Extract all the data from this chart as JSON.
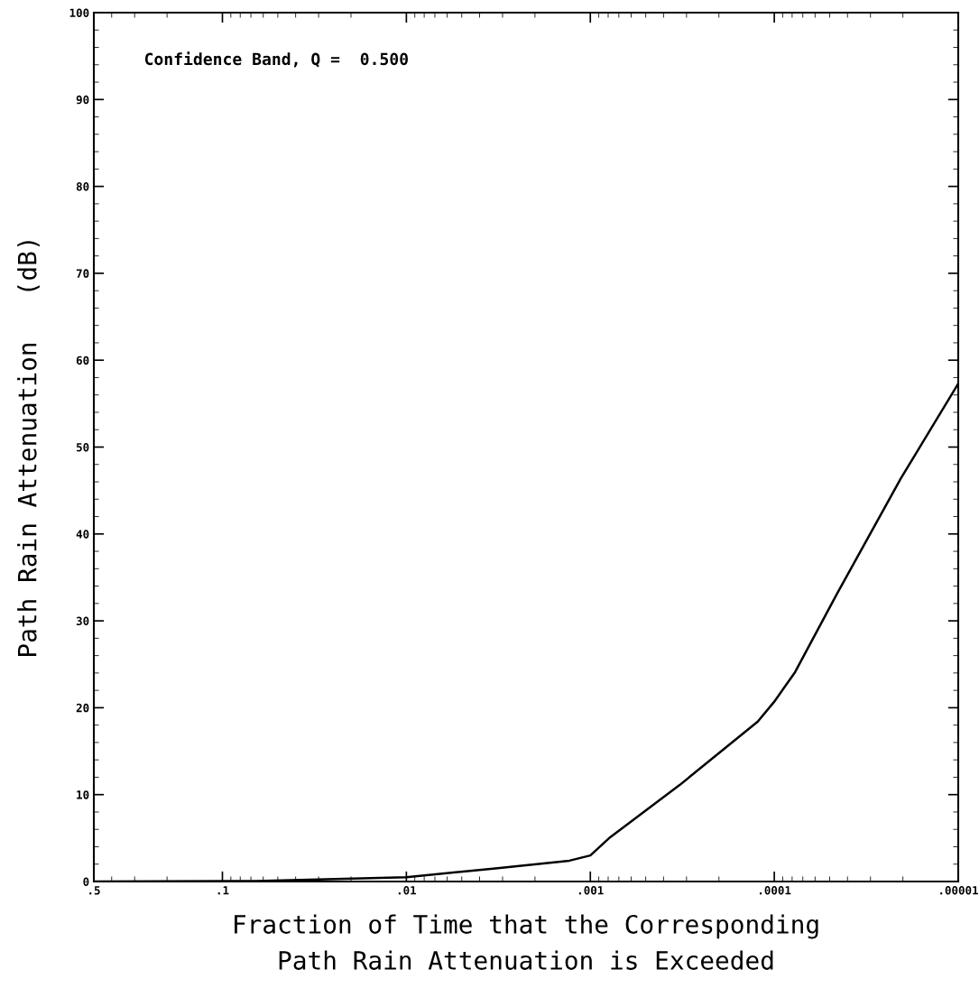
{
  "chart_data": {
    "type": "line",
    "xlabel": "Fraction of Time that the Corresponding\nPath Rain Attenuation is Exceeded",
    "ylabel": "Path Rain Attenuation   (dB)",
    "annotations": [
      "Confidence Band, Q =  0.500"
    ],
    "log": "x",
    "xlim": [
      0.5,
      1e-05
    ],
    "xticks": [
      {
        "value": 0.5,
        "label": ".5"
      },
      {
        "value": 0.1,
        "label": ".1"
      },
      {
        "value": 0.01,
        "label": ".01"
      },
      {
        "value": 0.001,
        "label": ".001"
      },
      {
        "value": 0.0001,
        "label": ".0001"
      },
      {
        "value": 1e-05,
        "label": ".00001"
      }
    ],
    "ylim": [
      0,
      100
    ],
    "yticks": [
      0,
      10,
      20,
      30,
      40,
      50,
      60,
      70,
      80,
      90,
      100
    ],
    "grid": false,
    "marker": "none",
    "line_style": "solid",
    "series": [
      {
        "color": "#000000",
        "x": [
          0.5,
          0.066,
          0.01,
          0.00328,
          0.0013,
          0.001,
          0.00078,
          0.000327,
          0.000123,
          0.0001,
          7.71e-05,
          4.59e-05,
          2.05e-05,
          1e-05
        ],
        "values": [
          0,
          0.05,
          0.5,
          1.5,
          2.4,
          3.0,
          5.1,
          11.1,
          18.4,
          20.7,
          24.1,
          33,
          46.4,
          57.3
        ]
      }
    ]
  }
}
